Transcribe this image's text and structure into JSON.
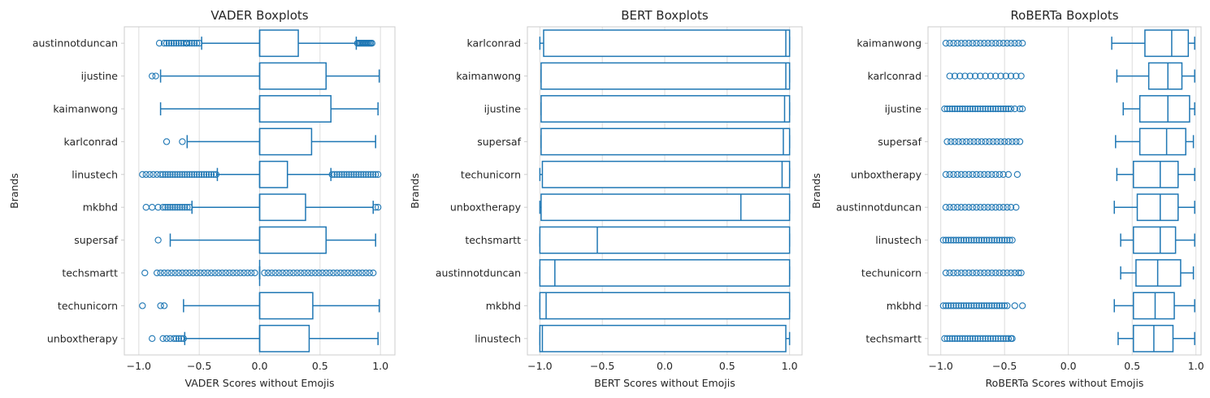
{
  "chart_data": [
    {
      "type": "boxplot",
      "orientation": "horizontal",
      "title": "VADER Boxplots",
      "xlabel": "VADER Scores without Emojis",
      "ylabel": "Brands",
      "xlim": [
        -1.12,
        1.12
      ],
      "xticks": [
        -1.0,
        -0.5,
        0.0,
        0.5,
        1.0
      ],
      "xtick_labels": [
        "−1.0",
        "−0.5",
        "0.0",
        "0.5",
        "1.0"
      ],
      "grid": true,
      "color": "#1f77b4",
      "boxes": [
        {
          "category": "austinnotduncan",
          "whisker_low": -0.48,
          "q1": 0.0,
          "median": 0.0,
          "q3": 0.32,
          "whisker_high": 0.8,
          "outliers": [
            -0.83,
            -0.79,
            -0.77,
            -0.75,
            -0.73,
            -0.71,
            -0.69,
            -0.67,
            -0.65,
            -0.63,
            -0.61,
            -0.6,
            -0.58,
            -0.56,
            -0.54,
            -0.52,
            -0.5,
            0.81,
            0.82,
            0.83,
            0.84,
            0.85,
            0.86,
            0.87,
            0.88,
            0.89,
            0.9,
            0.91,
            0.92,
            0.93
          ]
        },
        {
          "category": "ijustine",
          "whisker_low": -0.82,
          "q1": 0.0,
          "median": 0.0,
          "q3": 0.55,
          "whisker_high": 0.99,
          "outliers": [
            -0.89,
            -0.86
          ]
        },
        {
          "category": "kaimanwong",
          "whisker_low": -0.82,
          "q1": 0.0,
          "median": 0.0,
          "q3": 0.59,
          "whisker_high": 0.98,
          "outliers": []
        },
        {
          "category": "karlconrad",
          "whisker_low": -0.6,
          "q1": 0.0,
          "median": 0.0,
          "q3": 0.43,
          "whisker_high": 0.96,
          "outliers": [
            -0.77,
            -0.64
          ]
        },
        {
          "category": "linustech",
          "whisker_low": -0.35,
          "q1": 0.0,
          "median": 0.0,
          "q3": 0.23,
          "whisker_high": 0.59,
          "outliers": [
            -0.97,
            -0.94,
            -0.91,
            -0.88,
            -0.85,
            -0.82,
            -0.8,
            -0.78,
            -0.76,
            -0.74,
            -0.72,
            -0.7,
            -0.68,
            -0.66,
            -0.64,
            -0.62,
            -0.6,
            -0.58,
            -0.56,
            -0.54,
            -0.52,
            -0.5,
            -0.48,
            -0.46,
            -0.44,
            -0.42,
            -0.4,
            -0.38,
            -0.36,
            0.6,
            0.62,
            0.64,
            0.66,
            0.68,
            0.7,
            0.72,
            0.74,
            0.76,
            0.78,
            0.8,
            0.82,
            0.84,
            0.86,
            0.88,
            0.9,
            0.92,
            0.94,
            0.96,
            0.98
          ]
        },
        {
          "category": "mkbhd",
          "whisker_low": -0.56,
          "q1": 0.0,
          "median": 0.0,
          "q3": 0.38,
          "whisker_high": 0.94,
          "outliers": [
            -0.94,
            -0.89,
            -0.84,
            -0.8,
            -0.78,
            -0.76,
            -0.74,
            -0.72,
            -0.7,
            -0.68,
            -0.66,
            -0.64,
            -0.62,
            -0.6,
            -0.58,
            0.96,
            0.98
          ]
        },
        {
          "category": "supersaf",
          "whisker_low": -0.74,
          "q1": 0.0,
          "median": 0.0,
          "q3": 0.55,
          "whisker_high": 0.96,
          "outliers": [
            -0.84
          ]
        },
        {
          "category": "techsmartt",
          "whisker_low": 0.0,
          "q1": 0.0,
          "median": 0.0,
          "q3": 0.0,
          "whisker_high": 0.0,
          "outliers": [
            -0.95,
            -0.85,
            -0.82,
            -0.79,
            -0.76,
            -0.73,
            -0.7,
            -0.67,
            -0.64,
            -0.61,
            -0.58,
            -0.55,
            -0.52,
            -0.49,
            -0.46,
            -0.43,
            -0.4,
            -0.37,
            -0.34,
            -0.31,
            -0.28,
            -0.25,
            -0.22,
            -0.19,
            -0.16,
            -0.13,
            -0.1,
            -0.07,
            -0.04,
            0.04,
            0.07,
            0.1,
            0.13,
            0.16,
            0.19,
            0.22,
            0.25,
            0.28,
            0.31,
            0.34,
            0.37,
            0.4,
            0.43,
            0.46,
            0.49,
            0.52,
            0.55,
            0.58,
            0.61,
            0.64,
            0.67,
            0.7,
            0.73,
            0.76,
            0.79,
            0.82,
            0.85,
            0.88,
            0.91,
            0.94
          ]
        },
        {
          "category": "techunicorn",
          "whisker_low": -0.63,
          "q1": 0.0,
          "median": 0.0,
          "q3": 0.44,
          "whisker_high": 0.99,
          "outliers": [
            -0.97,
            -0.82,
            -0.79
          ]
        },
        {
          "category": "unboxtherapy",
          "whisker_low": -0.62,
          "q1": 0.0,
          "median": 0.0,
          "q3": 0.41,
          "whisker_high": 0.98,
          "outliers": [
            -0.89,
            -0.8,
            -0.77,
            -0.74,
            -0.71,
            -0.69,
            -0.67,
            -0.65,
            -0.63
          ]
        }
      ]
    },
    {
      "type": "boxplot",
      "orientation": "horizontal",
      "title": "BERT Boxplots",
      "xlabel": "BERT Scores without Emojis",
      "ylabel": "Brands",
      "xlim": [
        -1.1,
        1.1
      ],
      "xticks": [
        -1.0,
        -0.5,
        0.0,
        0.5,
        1.0
      ],
      "xtick_labels": [
        "−1.0",
        "−0.5",
        "0.0",
        "0.5",
        "1.0"
      ],
      "grid": true,
      "color": "#1f77b4",
      "boxes": [
        {
          "category": "karlconrad",
          "whisker_low": -1.0,
          "q1": -0.97,
          "median": 0.97,
          "q3": 1.0,
          "whisker_high": 1.0,
          "outliers": []
        },
        {
          "category": "kaimanwong",
          "whisker_low": -0.99,
          "q1": -0.99,
          "median": 0.97,
          "q3": 1.0,
          "whisker_high": 1.0,
          "outliers": []
        },
        {
          "category": "ijustine",
          "whisker_low": -0.99,
          "q1": -0.99,
          "median": 0.96,
          "q3": 1.0,
          "whisker_high": 1.0,
          "outliers": []
        },
        {
          "category": "supersaf",
          "whisker_low": -0.99,
          "q1": -0.99,
          "median": 0.95,
          "q3": 1.0,
          "whisker_high": 1.0,
          "outliers": []
        },
        {
          "category": "techunicorn",
          "whisker_low": -1.0,
          "q1": -0.98,
          "median": 0.94,
          "q3": 1.0,
          "whisker_high": 1.0,
          "outliers": []
        },
        {
          "category": "unboxtherapy",
          "whisker_low": -1.0,
          "q1": -0.99,
          "median": 0.61,
          "q3": 1.0,
          "whisker_high": 1.0,
          "outliers": []
        },
        {
          "category": "techsmartt",
          "whisker_low": -1.0,
          "q1": -1.0,
          "median": -0.54,
          "q3": 1.0,
          "whisker_high": 1.0,
          "outliers": []
        },
        {
          "category": "austinnotduncan",
          "whisker_low": -1.0,
          "q1": -1.0,
          "median": -0.88,
          "q3": 1.0,
          "whisker_high": 1.0,
          "outliers": []
        },
        {
          "category": "mkbhd",
          "whisker_low": -1.0,
          "q1": -1.0,
          "median": -0.95,
          "q3": 1.0,
          "whisker_high": 1.0,
          "outliers": []
        },
        {
          "category": "linustech",
          "whisker_low": -1.0,
          "q1": -1.0,
          "median": -0.98,
          "q3": 0.97,
          "whisker_high": 1.0,
          "outliers": []
        }
      ]
    },
    {
      "type": "boxplot",
      "orientation": "horizontal",
      "title": "RoBERTa Boxplots",
      "xlabel": "RoBERTa Scores without Emojis",
      "ylabel": "Brands",
      "xlim": [
        -1.1,
        1.04
      ],
      "xticks": [
        -1.0,
        -0.5,
        0.0,
        0.5,
        1.0
      ],
      "xtick_labels": [
        "−1.0",
        "−0.5",
        "0.0",
        "0.5",
        "1.0"
      ],
      "grid": true,
      "color": "#1f77b4",
      "boxes": [
        {
          "category": "kaimanwong",
          "whisker_low": 0.34,
          "q1": 0.6,
          "median": 0.81,
          "q3": 0.94,
          "whisker_high": 0.99,
          "outliers": [
            -0.96,
            -0.93,
            -0.9,
            -0.87,
            -0.84,
            -0.81,
            -0.78,
            -0.75,
            -0.72,
            -0.69,
            -0.66,
            -0.63,
            -0.6,
            -0.57,
            -0.54,
            -0.51,
            -0.48,
            -0.45,
            -0.42,
            -0.39,
            -0.36
          ]
        },
        {
          "category": "karlconrad",
          "whisker_low": 0.38,
          "q1": 0.63,
          "median": 0.78,
          "q3": 0.89,
          "whisker_high": 0.99,
          "outliers": [
            -0.93,
            -0.89,
            -0.85,
            -0.81,
            -0.77,
            -0.73,
            -0.69,
            -0.65,
            -0.61,
            -0.57,
            -0.53,
            -0.49,
            -0.45,
            -0.41,
            -0.37
          ]
        },
        {
          "category": "ijustine",
          "whisker_low": 0.43,
          "q1": 0.56,
          "median": 0.78,
          "q3": 0.95,
          "whisker_high": 0.99,
          "outliers": [
            -0.97,
            -0.95,
            -0.93,
            -0.91,
            -0.89,
            -0.87,
            -0.85,
            -0.83,
            -0.81,
            -0.79,
            -0.77,
            -0.75,
            -0.73,
            -0.71,
            -0.69,
            -0.67,
            -0.65,
            -0.63,
            -0.61,
            -0.59,
            -0.57,
            -0.55,
            -0.53,
            -0.51,
            -0.49,
            -0.47,
            -0.45,
            -0.42,
            -0.38,
            -0.36
          ]
        },
        {
          "category": "supersaf",
          "whisker_low": 0.37,
          "q1": 0.56,
          "median": 0.77,
          "q3": 0.92,
          "whisker_high": 0.98,
          "outliers": [
            -0.95,
            -0.92,
            -0.89,
            -0.86,
            -0.83,
            -0.8,
            -0.77,
            -0.74,
            -0.71,
            -0.68,
            -0.65,
            -0.62,
            -0.59,
            -0.56,
            -0.53,
            -0.5,
            -0.47,
            -0.44,
            -0.41,
            -0.38
          ]
        },
        {
          "category": "unboxtherapy",
          "whisker_low": 0.38,
          "q1": 0.51,
          "median": 0.72,
          "q3": 0.86,
          "whisker_high": 0.99,
          "outliers": [
            -0.96,
            -0.93,
            -0.9,
            -0.87,
            -0.84,
            -0.81,
            -0.78,
            -0.75,
            -0.72,
            -0.69,
            -0.66,
            -0.63,
            -0.6,
            -0.57,
            -0.54,
            -0.51,
            -0.47,
            -0.4
          ]
        },
        {
          "category": "austinnotduncan",
          "whisker_low": 0.36,
          "q1": 0.54,
          "median": 0.72,
          "q3": 0.86,
          "whisker_high": 0.99,
          "outliers": [
            -0.96,
            -0.93,
            -0.9,
            -0.87,
            -0.84,
            -0.81,
            -0.78,
            -0.75,
            -0.72,
            -0.69,
            -0.66,
            -0.63,
            -0.6,
            -0.57,
            -0.54,
            -0.51,
            -0.48,
            -0.45,
            -0.41
          ]
        },
        {
          "category": "linustech",
          "whisker_low": 0.41,
          "q1": 0.51,
          "median": 0.72,
          "q3": 0.84,
          "whisker_high": 0.99,
          "outliers": [
            -0.98,
            -0.96,
            -0.94,
            -0.92,
            -0.9,
            -0.88,
            -0.86,
            -0.84,
            -0.82,
            -0.8,
            -0.78,
            -0.76,
            -0.74,
            -0.72,
            -0.7,
            -0.68,
            -0.66,
            -0.64,
            -0.62,
            -0.6,
            -0.58,
            -0.56,
            -0.54,
            -0.52,
            -0.5,
            -0.48,
            -0.46,
            -0.44
          ]
        },
        {
          "category": "techunicorn",
          "whisker_low": 0.41,
          "q1": 0.53,
          "median": 0.7,
          "q3": 0.88,
          "whisker_high": 0.98,
          "outliers": [
            -0.96,
            -0.93,
            -0.9,
            -0.87,
            -0.84,
            -0.81,
            -0.78,
            -0.75,
            -0.72,
            -0.69,
            -0.66,
            -0.63,
            -0.6,
            -0.57,
            -0.54,
            -0.51,
            -0.48,
            -0.45,
            -0.42,
            -0.39,
            -0.37
          ]
        },
        {
          "category": "mkbhd",
          "whisker_low": 0.36,
          "q1": 0.51,
          "median": 0.68,
          "q3": 0.83,
          "whisker_high": 0.99,
          "outliers": [
            -0.98,
            -0.96,
            -0.94,
            -0.92,
            -0.9,
            -0.88,
            -0.86,
            -0.84,
            -0.82,
            -0.8,
            -0.78,
            -0.76,
            -0.74,
            -0.72,
            -0.7,
            -0.68,
            -0.66,
            -0.64,
            -0.62,
            -0.6,
            -0.58,
            -0.56,
            -0.54,
            -0.52,
            -0.5,
            -0.48,
            -0.42,
            -0.36
          ]
        },
        {
          "category": "techsmartt",
          "whisker_low": 0.39,
          "q1": 0.51,
          "median": 0.67,
          "q3": 0.82,
          "whisker_high": 0.99,
          "outliers": [
            -0.97,
            -0.95,
            -0.93,
            -0.91,
            -0.89,
            -0.87,
            -0.85,
            -0.83,
            -0.81,
            -0.79,
            -0.77,
            -0.75,
            -0.73,
            -0.71,
            -0.69,
            -0.67,
            -0.65,
            -0.63,
            -0.61,
            -0.59,
            -0.57,
            -0.55,
            -0.53,
            -0.51,
            -0.49,
            -0.47,
            -0.45,
            -0.44
          ]
        }
      ]
    }
  ]
}
